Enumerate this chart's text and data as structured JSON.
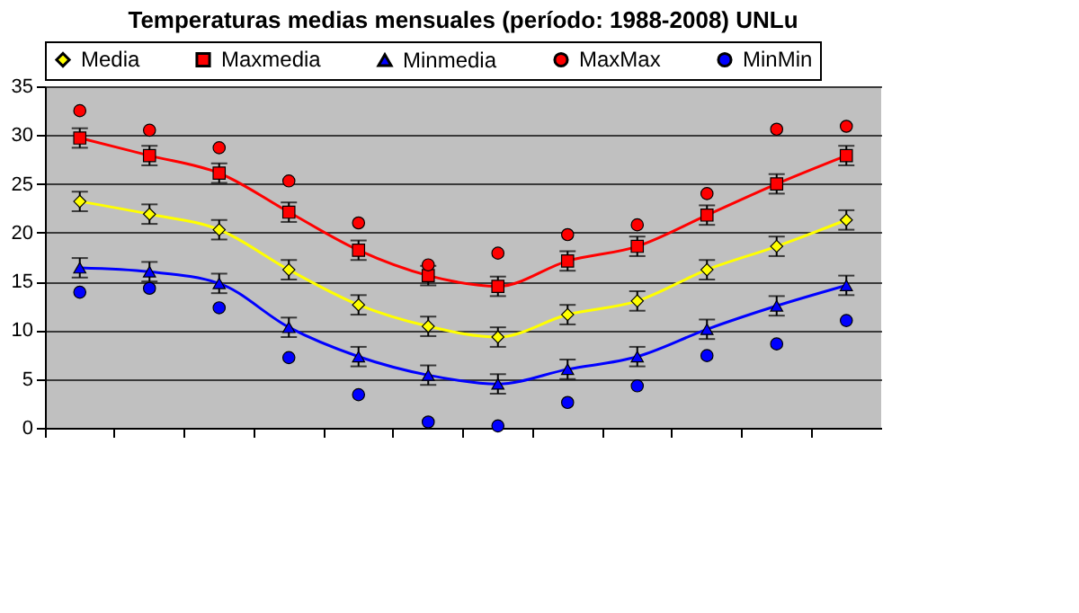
{
  "chart_data": {
    "type": "line",
    "title": "Temperaturas medias mensuales (período: 1988-2008) UNLu",
    "categories": [
      null,
      null,
      null,
      null,
      null,
      null,
      null,
      null,
      null,
      null,
      null,
      null
    ],
    "series": [
      {
        "name": "Media",
        "type": "line",
        "marker": "diamond",
        "color": "#ffff00",
        "values": [
          23.2,
          21.9,
          20.3,
          16.2,
          12.6,
          10.4,
          9.3,
          11.6,
          13.0,
          16.2,
          18.6,
          21.3
        ],
        "errors": [
          1,
          1,
          1,
          1,
          1,
          1,
          1,
          1,
          1,
          1,
          1,
          1
        ]
      },
      {
        "name": "Maxmedia",
        "type": "line",
        "marker": "square",
        "color": "#ff0000",
        "values": [
          29.7,
          27.9,
          26.1,
          22.1,
          18.2,
          15.6,
          14.5,
          17.1,
          18.6,
          21.8,
          25.0,
          27.9
        ],
        "errors": [
          1,
          1,
          1,
          1,
          1,
          1,
          1,
          1,
          1,
          1,
          1,
          1
        ]
      },
      {
        "name": "Minmedia",
        "type": "line",
        "marker": "triangle",
        "color": "#0000ff",
        "values": [
          16.4,
          16.0,
          14.8,
          10.3,
          7.3,
          5.4,
          4.5,
          6.0,
          7.3,
          10.1,
          12.5,
          14.6
        ],
        "errors": [
          1,
          1,
          1,
          1,
          1,
          1,
          1,
          1,
          1,
          1,
          1,
          1
        ]
      },
      {
        "name": "MaxMax",
        "type": "scatter",
        "marker": "circle",
        "color": "#ff0000",
        "values": [
          32.5,
          30.5,
          28.7,
          25.3,
          21.0,
          16.7,
          17.9,
          19.8,
          20.8,
          24.0,
          30.6,
          30.9
        ]
      },
      {
        "name": "MinMin",
        "type": "scatter",
        "marker": "circle",
        "color": "#0000ff",
        "values": [
          13.9,
          14.3,
          12.3,
          7.2,
          3.4,
          0.6,
          0.2,
          2.6,
          4.3,
          7.4,
          8.6,
          11.0
        ]
      }
    ],
    "ylim": [
      0,
      35
    ],
    "yticks": [
      0,
      5,
      10,
      15,
      20,
      25,
      30,
      35
    ],
    "grid": "y",
    "legend": "top",
    "tick_labels": "y"
  }
}
